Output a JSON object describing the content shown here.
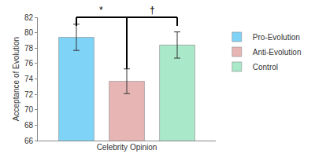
{
  "chart_data": {
    "type": "bar",
    "x_label": "Celebrity Opinion",
    "y_label": "Acceptance of Evolution",
    "categories": [
      null
    ],
    "series": [
      {
        "name": "Pro-Evolution",
        "color": "#7fd3f7",
        "values": [
          79.4
        ],
        "error": [
          1.7
        ]
      },
      {
        "name": "Anti-Evolution",
        "color": "#e8b5b5",
        "values": [
          73.7
        ],
        "error": [
          1.6
        ]
      },
      {
        "name": "Control",
        "color": "#a9e8c8",
        "values": [
          78.4
        ],
        "error": [
          1.7
        ]
      }
    ],
    "ylim": [
      66,
      82
    ],
    "yticks": [
      66,
      68,
      70,
      72,
      74,
      76,
      78,
      80,
      82
    ],
    "grid": false,
    "legend": "right",
    "tick_labels": "y",
    "annotations": [
      {
        "text": "*",
        "from": "Pro-Evolution",
        "to": "Anti-Evolution"
      },
      {
        "text": "†",
        "from": "Anti-Evolution",
        "to": "Control"
      }
    ]
  }
}
